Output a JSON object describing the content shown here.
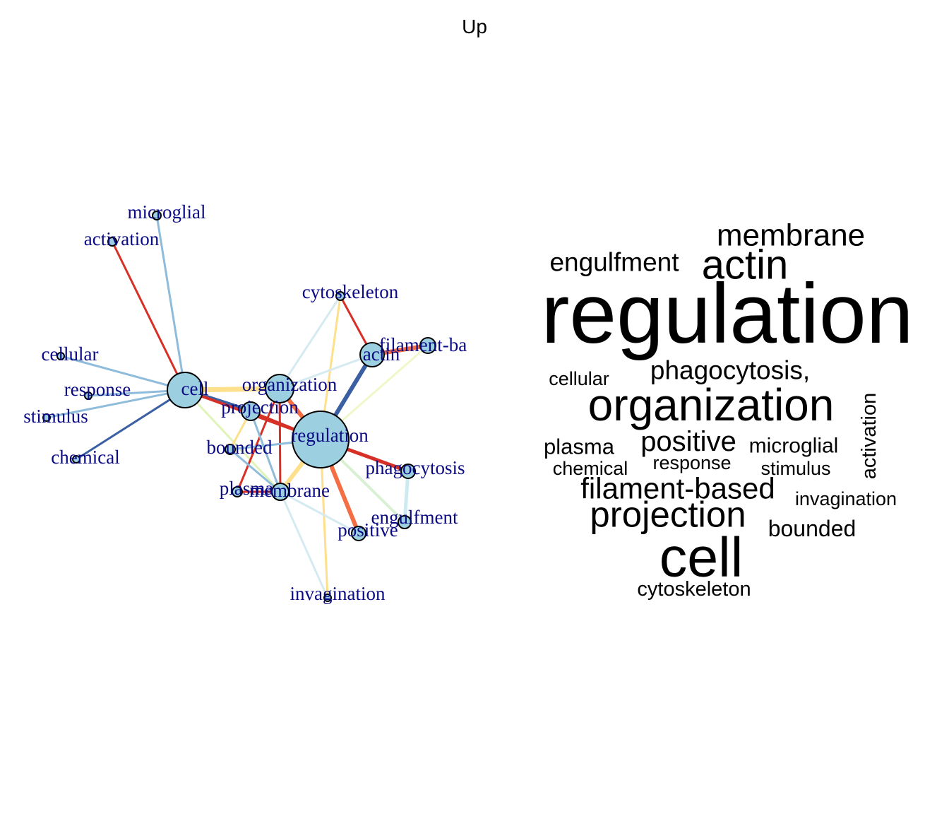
{
  "title": "Up",
  "network": {
    "nodes": [
      {
        "id": "microglial",
        "label": "microglial"
      },
      {
        "id": "activation",
        "label": "activation"
      },
      {
        "id": "cytoskeleton",
        "label": "cytoskeleton"
      },
      {
        "id": "filament",
        "label": "filament-ba"
      },
      {
        "id": "actin",
        "label": "actin"
      },
      {
        "id": "cellular",
        "label": "cellular"
      },
      {
        "id": "response",
        "label": "response"
      },
      {
        "id": "stimulus",
        "label": "stimulus"
      },
      {
        "id": "cell",
        "label": "cell"
      },
      {
        "id": "organization",
        "label": "organization"
      },
      {
        "id": "projection",
        "label": "projection"
      },
      {
        "id": "regulation",
        "label": "regulation"
      },
      {
        "id": "chemical",
        "label": "chemical"
      },
      {
        "id": "bounded",
        "label": "bounded"
      },
      {
        "id": "phagocytosis",
        "label": "phagocytosis"
      },
      {
        "id": "plasma",
        "label": "plasma"
      },
      {
        "id": "membrane",
        "label": "membrane"
      },
      {
        "id": "engulfment",
        "label": "engulfment"
      },
      {
        "id": "positive",
        "label": "positive"
      },
      {
        "id": "invagination",
        "label": "invagination"
      }
    ],
    "edges": [
      {
        "from": "activation",
        "to": "cell",
        "color": "#d73027"
      },
      {
        "from": "microglial",
        "to": "cell",
        "color": "#8fbcda"
      },
      {
        "from": "cellular",
        "to": "cell",
        "color": "#8fbcda"
      },
      {
        "from": "response",
        "to": "cell",
        "color": "#8fbcda"
      },
      {
        "from": "stimulus",
        "to": "cell",
        "color": "#8fbcda"
      },
      {
        "from": "chemical",
        "to": "cell",
        "color": "#3a5fa3"
      },
      {
        "from": "cell",
        "to": "organization",
        "color": "#fee08b"
      },
      {
        "from": "cell",
        "to": "projection",
        "color": "#3a5fa3"
      },
      {
        "from": "cell",
        "to": "regulation",
        "color": "#d73027"
      },
      {
        "from": "cell",
        "to": "membrane",
        "color": "#e0f3b8"
      },
      {
        "from": "cytoskeleton",
        "to": "organization",
        "color": "#d6eaf2"
      },
      {
        "from": "cytoskeleton",
        "to": "regulation",
        "color": "#fee08b"
      },
      {
        "from": "cytoskeleton",
        "to": "actin",
        "color": "#d73027"
      },
      {
        "from": "actin",
        "to": "filament",
        "color": "#f46d43"
      },
      {
        "from": "actin",
        "to": "regulation",
        "color": "#3a5fa3"
      },
      {
        "from": "actin",
        "to": "organization",
        "color": "#d6eaf2"
      },
      {
        "from": "filament",
        "to": "regulation",
        "color": "#eef8c8"
      },
      {
        "from": "organization",
        "to": "regulation",
        "color": "#f46d43"
      },
      {
        "from": "organization",
        "to": "membrane",
        "color": "#d73027"
      },
      {
        "from": "organization",
        "to": "plasma",
        "color": "#d73027"
      },
      {
        "from": "projection",
        "to": "regulation",
        "color": "#d73027"
      },
      {
        "from": "projection",
        "to": "membrane",
        "color": "#8fbcda"
      },
      {
        "from": "projection",
        "to": "bounded",
        "color": "#fee08b"
      },
      {
        "from": "bounded",
        "to": "regulation",
        "color": "#8fbcda"
      },
      {
        "from": "bounded",
        "to": "membrane",
        "color": "#8fbcda"
      },
      {
        "from": "regulation",
        "to": "phagocytosis",
        "color": "#d73027"
      },
      {
        "from": "regulation",
        "to": "positive",
        "color": "#f46d43"
      },
      {
        "from": "regulation",
        "to": "membrane",
        "color": "#fee08b"
      },
      {
        "from": "regulation",
        "to": "invagination",
        "color": "#fee08b"
      },
      {
        "from": "regulation",
        "to": "engulfment",
        "color": "#d9f0d3"
      },
      {
        "from": "plasma",
        "to": "membrane",
        "color": "#d73027"
      },
      {
        "from": "membrane",
        "to": "invagination",
        "color": "#d6eaf2"
      },
      {
        "from": "membrane",
        "to": "positive",
        "color": "#d6eaf2"
      },
      {
        "from": "phagocytosis",
        "to": "engulfment",
        "color": "#cdeaf0"
      }
    ]
  },
  "wordcloud": [
    {
      "text": "membrane"
    },
    {
      "text": "engulfment"
    },
    {
      "text": "actin"
    },
    {
      "text": "regulation"
    },
    {
      "text": "cellular"
    },
    {
      "text": "phagocytosis,"
    },
    {
      "text": "organization"
    },
    {
      "text": "activation"
    },
    {
      "text": "plasma"
    },
    {
      "text": "positive"
    },
    {
      "text": "microglial"
    },
    {
      "text": "chemical"
    },
    {
      "text": "response"
    },
    {
      "text": "stimulus"
    },
    {
      "text": "filament-based"
    },
    {
      "text": "invagination"
    },
    {
      "text": "projection"
    },
    {
      "text": "bounded"
    },
    {
      "text": "cell"
    },
    {
      "text": "cytoskeleton"
    }
  ]
}
